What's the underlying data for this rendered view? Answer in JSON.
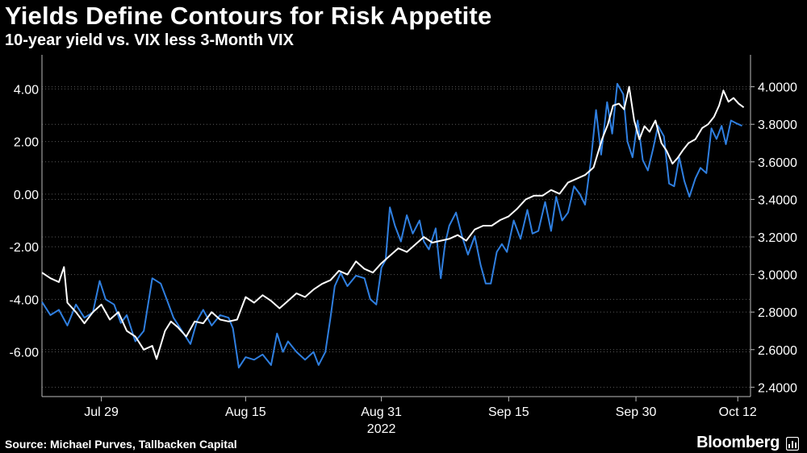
{
  "chart_data": {
    "type": "line",
    "title": "Yields Define Contours for Risk Appetite",
    "subtitle": "10-year yield vs. VIX less 3-Month VIX",
    "x_ticks": [
      {
        "label": "Jul 29",
        "day": 7
      },
      {
        "label": "Aug 15",
        "day": 24
      },
      {
        "label": "Aug 31",
        "day": 40
      },
      {
        "label": "Sep 15",
        "day": 55
      },
      {
        "label": "Sep 30",
        "day": 70
      },
      {
        "label": "Oct 12",
        "day": 82
      }
    ],
    "x_year_label": "2022",
    "x_range": [
      0,
      83.5
    ],
    "left_axis": {
      "ticks": [
        "4.00",
        "2.00",
        "0.00",
        "-2.00",
        "-4.00",
        "-6.00"
      ],
      "tick_values": [
        4,
        2,
        0,
        -2,
        -4,
        -6
      ],
      "range": [
        -7.7,
        5.3
      ]
    },
    "right_axis": {
      "ticks": [
        "4.0000",
        "3.8000",
        "3.6000",
        "3.4000",
        "3.2000",
        "3.0000",
        "2.8000",
        "2.6000",
        "2.4000"
      ],
      "tick_values": [
        4.0,
        3.8,
        3.6,
        3.4,
        3.2,
        3.0,
        2.8,
        2.6,
        2.4
      ],
      "range": [
        2.35,
        4.17
      ]
    },
    "grid": true,
    "series": [
      {
        "name": "VIX less 3-Month VIX",
        "axis": "left",
        "color": "#2f7fe0",
        "points": [
          [
            0,
            -4.1
          ],
          [
            1,
            -4.6
          ],
          [
            2,
            -4.4
          ],
          [
            3,
            -5.0
          ],
          [
            4,
            -4.2
          ],
          [
            5,
            -4.7
          ],
          [
            6,
            -4.5
          ],
          [
            6.8,
            -3.3
          ],
          [
            7.5,
            -4.0
          ],
          [
            8.5,
            -4.2
          ],
          [
            9.3,
            -4.9
          ],
          [
            10,
            -4.6
          ],
          [
            11,
            -5.6
          ],
          [
            12,
            -5.2
          ],
          [
            13,
            -3.2
          ],
          [
            14,
            -3.4
          ],
          [
            14.7,
            -4.0
          ],
          [
            15.5,
            -4.7
          ],
          [
            16.5,
            -5.2
          ],
          [
            17.5,
            -5.7
          ],
          [
            18.3,
            -4.8
          ],
          [
            19,
            -4.4
          ],
          [
            20,
            -5.0
          ],
          [
            21,
            -4.6
          ],
          [
            22,
            -4.7
          ],
          [
            22.5,
            -5.1
          ],
          [
            23.2,
            -6.6
          ],
          [
            24,
            -6.2
          ],
          [
            25,
            -6.3
          ],
          [
            26,
            -6.1
          ],
          [
            27,
            -6.5
          ],
          [
            27.7,
            -5.3
          ],
          [
            28.4,
            -6.0
          ],
          [
            29,
            -5.6
          ],
          [
            30,
            -6.0
          ],
          [
            31,
            -6.3
          ],
          [
            32,
            -6.0
          ],
          [
            32.6,
            -6.5
          ],
          [
            33.4,
            -6.0
          ],
          [
            34,
            -4.7
          ],
          [
            34.5,
            -3.5
          ],
          [
            35.2,
            -3.0
          ],
          [
            36,
            -3.5
          ],
          [
            37,
            -3.1
          ],
          [
            38,
            -3.2
          ],
          [
            38.7,
            -4.0
          ],
          [
            39.4,
            -4.2
          ],
          [
            40,
            -2.8
          ],
          [
            40.5,
            -2.5
          ],
          [
            41,
            -0.5
          ],
          [
            41.6,
            -1.2
          ],
          [
            42.3,
            -1.8
          ],
          [
            43,
            -0.8
          ],
          [
            43.7,
            -1.5
          ],
          [
            44.5,
            -1.0
          ],
          [
            45,
            -1.8
          ],
          [
            45.6,
            -2.1
          ],
          [
            46.4,
            -1.3
          ],
          [
            47,
            -3.2
          ],
          [
            47.5,
            -1.9
          ],
          [
            48,
            -1.2
          ],
          [
            48.8,
            -0.7
          ],
          [
            49.5,
            -1.6
          ],
          [
            50.2,
            -2.3
          ],
          [
            51,
            -1.6
          ],
          [
            51.7,
            -2.7
          ],
          [
            52.3,
            -3.4
          ],
          [
            52.9,
            -3.4
          ],
          [
            53.6,
            -2.2
          ],
          [
            54.2,
            -1.9
          ],
          [
            54.8,
            -2.2
          ],
          [
            55.6,
            -1.0
          ],
          [
            56.4,
            -1.7
          ],
          [
            57.2,
            -0.6
          ],
          [
            57.8,
            -1.5
          ],
          [
            58.5,
            -1.4
          ],
          [
            59.3,
            -0.3
          ],
          [
            60,
            -1.4
          ],
          [
            60.6,
            -0.1
          ],
          [
            61.3,
            -1.0
          ],
          [
            62,
            -0.7
          ],
          [
            62.7,
            0.3
          ],
          [
            63.4,
            0.0
          ],
          [
            64,
            -0.4
          ],
          [
            64.7,
            1.3
          ],
          [
            65.3,
            3.2
          ],
          [
            65.9,
            1.5
          ],
          [
            66.6,
            3.5
          ],
          [
            67.2,
            2.3
          ],
          [
            67.8,
            4.2
          ],
          [
            68.5,
            3.8
          ],
          [
            69,
            2.0
          ],
          [
            69.6,
            1.4
          ],
          [
            70.2,
            2.8
          ],
          [
            70.8,
            1.3
          ],
          [
            71.4,
            0.9
          ],
          [
            72,
            1.7
          ],
          [
            72.6,
            2.6
          ],
          [
            73.3,
            2.2
          ],
          [
            73.9,
            0.4
          ],
          [
            74.5,
            0.3
          ],
          [
            75.1,
            1.4
          ],
          [
            75.7,
            0.5
          ],
          [
            76.3,
            -0.1
          ],
          [
            77,
            0.6
          ],
          [
            77.6,
            1.0
          ],
          [
            78.3,
            0.8
          ],
          [
            78.9,
            2.5
          ],
          [
            79.5,
            2.1
          ],
          [
            80.1,
            2.6
          ],
          [
            80.6,
            1.9
          ],
          [
            81.2,
            2.8
          ],
          [
            81.8,
            2.7
          ],
          [
            82.5,
            2.6
          ]
        ]
      },
      {
        "name": "10-year yield",
        "axis": "right",
        "color": "#ffffff",
        "points": [
          [
            0,
            3.01
          ],
          [
            1,
            2.98
          ],
          [
            2,
            2.96
          ],
          [
            2.6,
            3.04
          ],
          [
            3,
            2.85
          ],
          [
            4,
            2.8
          ],
          [
            5,
            2.74
          ],
          [
            6,
            2.8
          ],
          [
            7,
            2.84
          ],
          [
            8,
            2.76
          ],
          [
            9,
            2.8
          ],
          [
            10,
            2.7
          ],
          [
            11,
            2.67
          ],
          [
            12,
            2.6
          ],
          [
            13,
            2.62
          ],
          [
            13.5,
            2.55
          ],
          [
            14.5,
            2.7
          ],
          [
            15.2,
            2.75
          ],
          [
            16,
            2.72
          ],
          [
            17,
            2.67
          ],
          [
            18,
            2.75
          ],
          [
            19,
            2.74
          ],
          [
            20,
            2.8
          ],
          [
            21,
            2.76
          ],
          [
            22,
            2.75
          ],
          [
            23,
            2.76
          ],
          [
            24,
            2.88
          ],
          [
            25,
            2.85
          ],
          [
            26,
            2.89
          ],
          [
            27,
            2.86
          ],
          [
            28,
            2.82
          ],
          [
            29,
            2.86
          ],
          [
            30,
            2.9
          ],
          [
            31,
            2.88
          ],
          [
            32,
            2.92
          ],
          [
            33,
            2.95
          ],
          [
            34,
            2.97
          ],
          [
            35,
            3.02
          ],
          [
            36,
            3.0
          ],
          [
            37,
            3.07
          ],
          [
            38,
            3.03
          ],
          [
            39,
            3.01
          ],
          [
            40,
            3.06
          ],
          [
            41,
            3.1
          ],
          [
            42,
            3.14
          ],
          [
            43,
            3.12
          ],
          [
            44,
            3.16
          ],
          [
            45,
            3.2
          ],
          [
            46,
            3.17
          ],
          [
            47,
            3.18
          ],
          [
            48,
            3.19
          ],
          [
            49,
            3.21
          ],
          [
            50,
            3.18
          ],
          [
            51,
            3.24
          ],
          [
            52,
            3.26
          ],
          [
            53,
            3.26
          ],
          [
            54,
            3.29
          ],
          [
            55,
            3.31
          ],
          [
            56,
            3.35
          ],
          [
            57,
            3.4
          ],
          [
            58,
            3.42
          ],
          [
            59,
            3.42
          ],
          [
            60,
            3.45
          ],
          [
            61,
            3.43
          ],
          [
            62,
            3.49
          ],
          [
            63,
            3.51
          ],
          [
            64,
            3.53
          ],
          [
            65,
            3.57
          ],
          [
            66,
            3.72
          ],
          [
            66.7,
            3.8
          ],
          [
            67.3,
            3.9
          ],
          [
            68,
            3.91
          ],
          [
            68.6,
            3.88
          ],
          [
            69.2,
            4.0
          ],
          [
            69.8,
            3.82
          ],
          [
            70.4,
            3.72
          ],
          [
            71,
            3.79
          ],
          [
            71.6,
            3.76
          ],
          [
            72.3,
            3.82
          ],
          [
            73,
            3.7
          ],
          [
            73.6,
            3.66
          ],
          [
            74.3,
            3.59
          ],
          [
            74.9,
            3.62
          ],
          [
            75.5,
            3.66
          ],
          [
            76.2,
            3.7
          ],
          [
            77,
            3.72
          ],
          [
            77.8,
            3.78
          ],
          [
            78.5,
            3.8
          ],
          [
            79.2,
            3.84
          ],
          [
            79.8,
            3.9
          ],
          [
            80.3,
            3.98
          ],
          [
            80.9,
            3.92
          ],
          [
            81.5,
            3.94
          ],
          [
            82.1,
            3.91
          ],
          [
            82.7,
            3.89
          ]
        ]
      }
    ],
    "source": "Source: Michael Purves, Tallbacken Capital",
    "brand": "Bloomberg"
  }
}
